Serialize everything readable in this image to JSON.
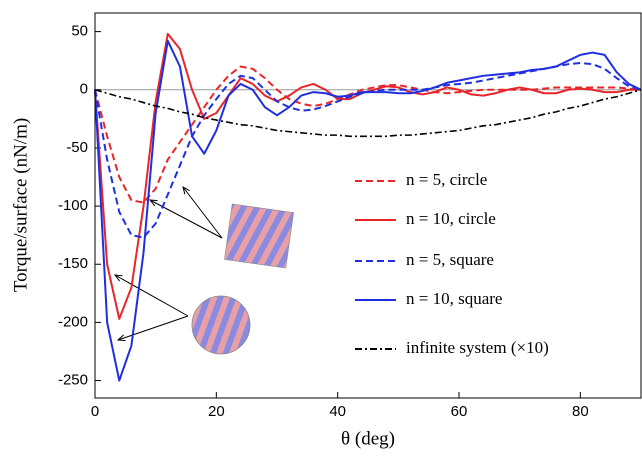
{
  "chart_data": {
    "type": "line",
    "xlabel": "θ (deg)",
    "ylabel": "Torque/surface (nN/m)",
    "x": [
      0,
      2,
      4,
      6,
      8,
      10,
      12,
      14,
      16,
      18,
      20,
      22,
      24,
      26,
      28,
      30,
      32,
      34,
      36,
      38,
      40,
      42,
      44,
      46,
      48,
      50,
      52,
      54,
      56,
      58,
      60,
      62,
      64,
      66,
      68,
      70,
      72,
      74,
      76,
      78,
      80,
      82,
      84,
      86,
      88,
      90
    ],
    "xlim": [
      0,
      90
    ],
    "xticks": [
      0,
      20,
      40,
      60,
      80
    ],
    "ylim": [
      -265,
      66
    ],
    "yticks": [
      -250,
      -200,
      -150,
      -100,
      -50,
      0,
      50
    ],
    "series": [
      {
        "name": "n = 5, circle",
        "color": "#e8262a",
        "dash": "dashed",
        "values": [
          0,
          -40,
          -75,
          -95,
          -97,
          -85,
          -60,
          -45,
          -30,
          -15,
          0,
          12,
          20,
          18,
          10,
          0,
          -8,
          -12,
          -14,
          -12,
          -8,
          -4,
          0,
          2,
          4,
          4,
          2,
          0,
          -2,
          -3,
          -2,
          -1,
          0,
          0,
          0,
          0,
          0,
          1,
          2,
          2,
          2,
          2,
          2,
          2,
          1,
          0
        ]
      },
      {
        "name": "n = 10, circle",
        "color": "#e8262a",
        "dash": "solid",
        "values": [
          0,
          -150,
          -197,
          -170,
          -100,
          -10,
          48,
          35,
          0,
          -25,
          -20,
          -5,
          10,
          5,
          -5,
          -10,
          -5,
          2,
          5,
          0,
          -8,
          -8,
          -3,
          0,
          3,
          2,
          -2,
          -4,
          -2,
          2,
          0,
          -4,
          -5,
          -3,
          0,
          2,
          0,
          -3,
          -3,
          0,
          1,
          0,
          -2,
          -2,
          0,
          0
        ]
      },
      {
        "name": "n = 5, square",
        "color": "#1f2fe0",
        "dash": "dashed",
        "values": [
          0,
          -60,
          -105,
          -125,
          -127,
          -115,
          -90,
          -65,
          -40,
          -22,
          -8,
          5,
          12,
          10,
          0,
          -10,
          -15,
          -18,
          -17,
          -14,
          -10,
          -6,
          -3,
          -1,
          0,
          0,
          0,
          0,
          2,
          4,
          5,
          6,
          8,
          10,
          12,
          14,
          16,
          18,
          20,
          22,
          23,
          22,
          18,
          10,
          3,
          0
        ]
      },
      {
        "name": "n = 10, square",
        "color": "#1f2fe0",
        "dash": "solid",
        "values": [
          0,
          -200,
          -250,
          -220,
          -140,
          -20,
          42,
          20,
          -40,
          -55,
          -35,
          -5,
          5,
          0,
          -15,
          -22,
          -15,
          -5,
          -2,
          -3,
          -6,
          -5,
          -2,
          -2,
          -2,
          -3,
          -3,
          -1,
          2,
          6,
          8,
          10,
          12,
          13,
          14,
          15,
          17,
          18,
          20,
          25,
          30,
          32,
          30,
          15,
          5,
          0
        ]
      },
      {
        "name": "infinite system (×10)",
        "color": "#000000",
        "dash": "dashdot",
        "values": [
          0,
          -3,
          -6,
          -8,
          -11,
          -14,
          -16,
          -19,
          -21,
          -24,
          -26,
          -28,
          -30,
          -31,
          -33,
          -35,
          -36,
          -37,
          -38,
          -39,
          -39,
          -40,
          -40,
          -40,
          -40,
          -39,
          -39,
          -38,
          -37,
          -36,
          -35,
          -33,
          -31,
          -30,
          -28,
          -26,
          -24,
          -21,
          -19,
          -16,
          -14,
          -11,
          -8,
          -6,
          -3,
          0
        ]
      }
    ]
  }
}
